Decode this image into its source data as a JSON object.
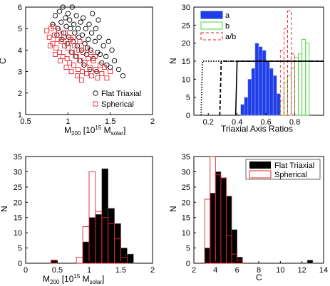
{
  "colors": {
    "black": "#000000",
    "red": "#e8222a",
    "blue": "#1f3ee6",
    "green": "#45d63a"
  },
  "chart_data": [
    {
      "id": "tl",
      "type": "scatter",
      "xlabel": "M200 [10^15 M solar]",
      "ylabel": "C",
      "xlim": [
        0.5,
        2
      ],
      "ylim": [
        1,
        6
      ],
      "xticks": [
        "0.5",
        "1",
        "1.5",
        "2"
      ],
      "yticks": [
        "1",
        "2",
        "3",
        "4",
        "5",
        "6"
      ],
      "legend_position": "bottom-right",
      "series": [
        {
          "name": "Flat Triaxial",
          "marker": "circle",
          "color": "#000000",
          "points": [
            [
              0.82,
              5.2
            ],
            [
              0.85,
              5.6
            ],
            [
              0.88,
              5.0
            ],
            [
              0.9,
              5.8
            ],
            [
              0.92,
              5.3
            ],
            [
              0.94,
              6.0
            ],
            [
              0.95,
              4.8
            ],
            [
              0.97,
              5.5
            ],
            [
              0.98,
              5.1
            ],
            [
              1.0,
              5.7
            ],
            [
              1.01,
              4.6
            ],
            [
              1.02,
              5.4
            ],
            [
              1.03,
              5.0
            ],
            [
              1.05,
              6.0
            ],
            [
              1.06,
              4.4
            ],
            [
              1.07,
              5.2
            ],
            [
              1.08,
              4.8
            ],
            [
              1.1,
              5.6
            ],
            [
              1.11,
              4.2
            ],
            [
              1.12,
              5.0
            ],
            [
              1.13,
              4.6
            ],
            [
              1.15,
              5.3
            ],
            [
              1.16,
              4.0
            ],
            [
              1.17,
              4.7
            ],
            [
              1.18,
              5.5
            ],
            [
              1.2,
              4.3
            ],
            [
              1.21,
              5.0
            ],
            [
              1.22,
              3.8
            ],
            [
              1.24,
              4.5
            ],
            [
              1.25,
              5.2
            ],
            [
              1.27,
              4.0
            ],
            [
              1.28,
              4.8
            ],
            [
              1.3,
              3.6
            ],
            [
              1.32,
              4.4
            ],
            [
              1.33,
              5.0
            ],
            [
              1.35,
              3.9
            ],
            [
              1.37,
              4.6
            ],
            [
              1.4,
              3.4
            ],
            [
              1.42,
              4.2
            ],
            [
              1.45,
              3.7
            ],
            [
              1.48,
              4.4
            ],
            [
              1.5,
              3.2
            ],
            [
              1.52,
              4.0
            ],
            [
              1.55,
              3.5
            ],
            [
              1.6,
              3.1
            ],
            [
              1.65,
              2.8
            ],
            [
              0.93,
              4.5
            ],
            [
              0.99,
              4.3
            ],
            [
              1.04,
              3.9
            ],
            [
              1.09,
              3.7
            ],
            [
              1.14,
              3.5
            ],
            [
              1.19,
              3.3
            ],
            [
              1.26,
              3.1
            ],
            [
              1.34,
              3.0
            ],
            [
              0.87,
              4.7
            ],
            [
              1.23,
              4.1
            ],
            [
              1.38,
              3.8
            ],
            [
              1.46,
              3.3
            ],
            [
              1.36,
              5.4
            ],
            [
              1.29,
              5.7
            ]
          ]
        },
        {
          "name": "Spherical",
          "marker": "square",
          "color": "#e8222a",
          "points": [
            [
              0.75,
              4.9
            ],
            [
              0.78,
              4.6
            ],
            [
              0.8,
              5.0
            ],
            [
              0.82,
              4.3
            ],
            [
              0.84,
              4.7
            ],
            [
              0.86,
              4.1
            ],
            [
              0.88,
              4.5
            ],
            [
              0.9,
              3.9
            ],
            [
              0.92,
              4.4
            ],
            [
              0.94,
              3.7
            ],
            [
              0.96,
              4.2
            ],
            [
              0.97,
              4.8
            ],
            [
              0.99,
              3.6
            ],
            [
              1.0,
              4.1
            ],
            [
              1.02,
              3.4
            ],
            [
              1.03,
              4.5
            ],
            [
              1.05,
              3.9
            ],
            [
              1.07,
              3.3
            ],
            [
              1.08,
              4.2
            ],
            [
              1.1,
              3.7
            ],
            [
              1.12,
              3.1
            ],
            [
              1.13,
              4.0
            ],
            [
              1.15,
              3.5
            ],
            [
              1.17,
              3.0
            ],
            [
              1.18,
              3.9
            ],
            [
              1.2,
              3.4
            ],
            [
              1.22,
              2.9
            ],
            [
              1.24,
              3.6
            ],
            [
              1.26,
              3.2
            ],
            [
              1.28,
              2.8
            ],
            [
              1.3,
              3.5
            ],
            [
              1.33,
              3.1
            ],
            [
              1.35,
              2.7
            ],
            [
              1.38,
              3.3
            ],
            [
              1.4,
              2.9
            ],
            [
              1.43,
              3.2
            ],
            [
              1.46,
              2.7
            ],
            [
              1.5,
              3.0
            ],
            [
              0.79,
              4.2
            ],
            [
              0.85,
              3.8
            ],
            [
              0.91,
              3.5
            ],
            [
              0.98,
              3.2
            ],
            [
              1.04,
              3.0
            ],
            [
              1.11,
              2.8
            ],
            [
              1.16,
              2.6
            ],
            [
              0.83,
              5.1
            ],
            [
              0.89,
              4.9
            ],
            [
              0.95,
              4.6
            ],
            [
              1.01,
              4.3
            ],
            [
              1.06,
              4.6
            ],
            [
              1.14,
              4.4
            ],
            [
              1.21,
              4.1
            ],
            [
              1.27,
              3.9
            ],
            [
              1.32,
              3.7
            ]
          ]
        }
      ]
    },
    {
      "id": "tr",
      "type": "bar",
      "xlabel": "Triaxial Axis Ratios",
      "ylabel": "N",
      "xlim": [
        0.1,
        1.0
      ],
      "ylim": [
        0,
        30
      ],
      "xticks": [
        "0.2",
        "0.4",
        "0.6",
        "0.8"
      ],
      "yticks": [
        "0",
        "5",
        "10",
        "15",
        "20",
        "25",
        "30"
      ],
      "legend_position": "top-left",
      "bin_width": 0.025,
      "series": [
        {
          "name": "a",
          "style": "filled",
          "color": "#1f3ee6",
          "bins": [
            0.425,
            0.45,
            0.475,
            0.5,
            0.525,
            0.55,
            0.575,
            0.6,
            0.625,
            0.65,
            0.675
          ],
          "values": [
            3,
            5,
            10,
            13,
            20,
            19,
            18,
            15,
            13,
            11,
            6
          ]
        },
        {
          "name": "b",
          "style": "outline",
          "color": "#45d63a",
          "bins": [
            0.7,
            0.725,
            0.75,
            0.775,
            0.8,
            0.825,
            0.85,
            0.875
          ],
          "values": [
            4,
            9,
            11,
            13,
            16,
            17,
            21,
            20
          ]
        },
        {
          "name": "a/b",
          "style": "dashed-outline",
          "color": "#e8222a",
          "bins": [
            0.7,
            0.725,
            0.75,
            0.775
          ],
          "values": [
            18,
            24,
            29,
            17
          ]
        }
      ],
      "cumulative_lines": [
        {
          "style": "dotted",
          "rise_x": 0.15,
          "level": 15
        },
        {
          "style": "dashed",
          "rise_x": 0.28,
          "level": 15
        },
        {
          "style": "solid",
          "rise_x": 0.39,
          "level": 15
        }
      ]
    },
    {
      "id": "bl",
      "type": "bar",
      "xlabel": "M200 [10^15 M solar]",
      "ylabel": "N",
      "xlim": [
        0,
        2
      ],
      "ylim": [
        0,
        35
      ],
      "xticks": [
        "0",
        "0.5",
        "1",
        "1.5",
        "2"
      ],
      "yticks": [
        "0",
        "5",
        "10",
        "15",
        "20",
        "25",
        "30",
        "35"
      ],
      "bin_width": 0.1,
      "series": [
        {
          "name": "Flat Triaxial",
          "style": "filled",
          "color": "#000000",
          "bins": [
            0.4,
            0.9,
            1.0,
            1.1,
            1.2,
            1.3,
            1.4,
            1.5,
            1.6
          ],
          "values": [
            1,
            7,
            15,
            16,
            31,
            18,
            13,
            5,
            3
          ]
        },
        {
          "name": "Spherical",
          "style": "outline",
          "color": "#e8222a",
          "bins": [
            0.4,
            0.8,
            0.9,
            1.0,
            1.1,
            1.2,
            1.3,
            1.4,
            1.5
          ],
          "values": [
            1,
            2,
            12,
            30,
            17,
            15,
            13,
            8,
            2
          ]
        }
      ]
    },
    {
      "id": "br",
      "type": "bar",
      "xlabel": "C",
      "ylabel": "N",
      "xlim": [
        2,
        14
      ],
      "ylim": [
        0,
        35
      ],
      "xticks": [
        "2",
        "4",
        "6",
        "8",
        "10",
        "12",
        "14"
      ],
      "yticks": [
        "0",
        "5",
        "10",
        "15",
        "20",
        "25",
        "30",
        "35"
      ],
      "legend_position": "top-right",
      "bin_width": 0.5,
      "series": [
        {
          "name": "Flat Triaxial",
          "style": "filled",
          "color": "#000000",
          "bins": [
            3.0,
            3.5,
            4.0,
            4.5,
            5.0,
            5.5,
            6.0,
            12.5
          ],
          "values": [
            5,
            23,
            30,
            28,
            22,
            11,
            2,
            1
          ]
        },
        {
          "name": "Spherical",
          "style": "outline",
          "color": "#e8222a",
          "bins": [
            3.0,
            3.5,
            4.0,
            4.5,
            5.0,
            5.5,
            6.0
          ],
          "values": [
            21,
            35,
            29,
            28,
            9,
            3,
            1
          ]
        }
      ]
    }
  ],
  "labels": {
    "m200_main": "M",
    "m200_sub": "200",
    "m200_mid": " [10",
    "m200_sup": "15",
    "m200_m": " M",
    "m200_solar": "solar",
    "m200_close": "]"
  }
}
